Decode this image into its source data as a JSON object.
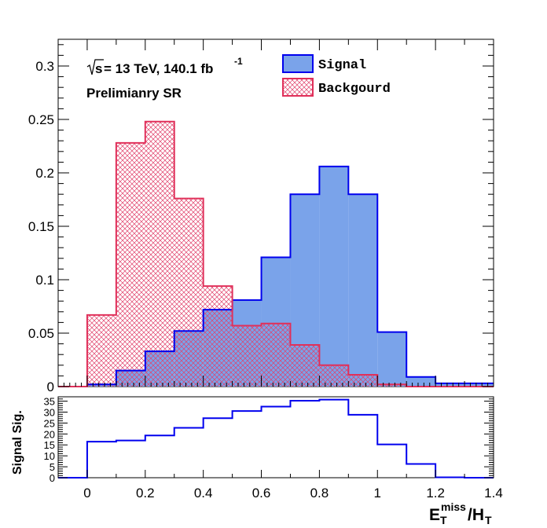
{
  "chart_data": [
    {
      "type": "histogram",
      "bin_edges": [
        -0.1,
        0.0,
        0.1,
        0.2,
        0.3,
        0.4,
        0.5,
        0.6,
        0.7,
        0.8,
        0.9,
        1.0,
        1.1,
        1.2,
        1.3,
        1.4
      ],
      "xlim": [
        -0.1,
        1.4
      ],
      "ylim": [
        0,
        0.325
      ],
      "x_ticks": [
        0,
        0.2,
        0.4,
        0.6,
        0.8,
        1,
        1.2,
        1.4
      ],
      "y_ticks": [
        0,
        0.05,
        0.1,
        0.15,
        0.2,
        0.25,
        0.3
      ],
      "y_tick_labels": [
        "0",
        "0.05",
        "0.1",
        "0.15",
        "0.2",
        "0.25",
        "0.3"
      ],
      "series": [
        {
          "name": "Signal",
          "values": [
            0.0,
            0.002,
            0.015,
            0.033,
            0.052,
            0.072,
            0.081,
            0.121,
            0.18,
            0.206,
            0.18,
            0.051,
            0.009,
            0.003,
            0.003
          ],
          "fill": "#7aa3ea",
          "line": "#0000ee",
          "style": "solid"
        },
        {
          "name": "Backgourd",
          "values": [
            0.0,
            0.067,
            0.228,
            0.248,
            0.176,
            0.094,
            0.057,
            0.059,
            0.039,
            0.02,
            0.011,
            0.002,
            0.0,
            0.0,
            0.0
          ],
          "fill": "#e04070",
          "line": "#e0305a",
          "style": "crosshatch"
        }
      ],
      "legend": {
        "placement": "top-right",
        "entries": [
          "Signal",
          "Backgourd"
        ]
      },
      "annotations": {
        "sqrt_s": "s",
        "energy_lumi": " = 13 TeV, 140.1 fb",
        "lumi_exponent": "-1",
        "region": "Prelimianry SR"
      }
    },
    {
      "type": "histogram",
      "bin_edges": [
        -0.1,
        0.0,
        0.1,
        0.2,
        0.3,
        0.4,
        0.5,
        0.6,
        0.7,
        0.8,
        0.9,
        1.0,
        1.1,
        1.2,
        1.3,
        1.4
      ],
      "xlim": [
        -0.1,
        1.4
      ],
      "ylim": [
        0,
        37
      ],
      "ylabel": "Signal Sig.",
      "x_ticks": [
        0,
        0.2,
        0.4,
        0.6,
        0.8,
        1,
        1.2,
        1.4
      ],
      "x_tick_labels": [
        "0",
        "0.2",
        "0.4",
        "0.6",
        "0.8",
        "1",
        "1.2",
        "1.4"
      ],
      "y_ticks": [
        0,
        5,
        10,
        15,
        20,
        25,
        30,
        35
      ],
      "y_tick_labels": [
        "0",
        "5",
        "10",
        "15",
        "20",
        "25",
        "30",
        "35"
      ],
      "xlabel": {
        "main": "E",
        "sub": "T",
        "sup": "miss",
        "slash": "/H",
        "sub2": "T"
      },
      "series": [
        {
          "name": "",
          "values": [
            0.0,
            16.5,
            17.0,
            19.3,
            22.8,
            27.2,
            30.5,
            32.5,
            35.2,
            35.7,
            28.8,
            15.2,
            6.3,
            0.2,
            0.0
          ],
          "line": "#0000ee"
        }
      ]
    }
  ]
}
